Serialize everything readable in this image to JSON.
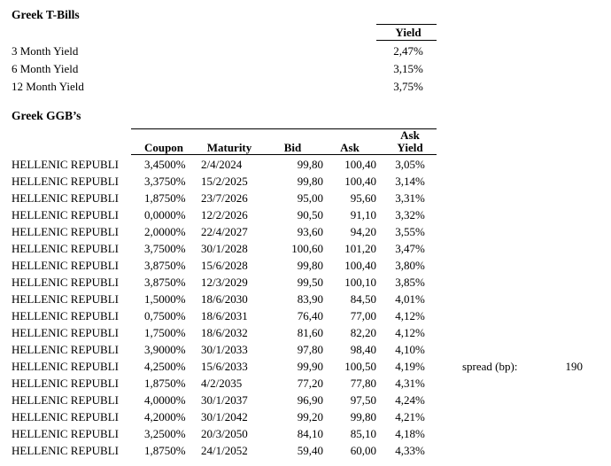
{
  "tbills": {
    "title": "Greek T-Bills",
    "yield_header": "Yield",
    "rows": [
      {
        "label": "3 Month Yield",
        "value": "2,47%"
      },
      {
        "label": "6 Month Yield",
        "value": "3,15%"
      },
      {
        "label": "12 Month Yield",
        "value": "3,75%"
      }
    ]
  },
  "ggbs": {
    "title": "Greek GGB’s",
    "columns": {
      "coupon": "Coupon",
      "maturity": "Maturity",
      "bid": "Bid",
      "ask": "Ask",
      "ask_yield_line1": "Ask",
      "ask_yield_line2": "Yield"
    },
    "rows": [
      {
        "name": "HELLENIC REPUBLI",
        "coupon": "3,4500%",
        "maturity": "2/4/2024",
        "bid": "99,80",
        "ask": "100,40",
        "yield": "3,05%"
      },
      {
        "name": "HELLENIC REPUBLI",
        "coupon": "3,3750%",
        "maturity": "15/2/2025",
        "bid": "99,80",
        "ask": "100,40",
        "yield": "3,14%"
      },
      {
        "name": "HELLENIC REPUBLI",
        "coupon": "1,8750%",
        "maturity": "23/7/2026",
        "bid": "95,00",
        "ask": "95,60",
        "yield": "3,31%"
      },
      {
        "name": "HELLENIC REPUBLI",
        "coupon": "0,0000%",
        "maturity": "12/2/2026",
        "bid": "90,50",
        "ask": "91,10",
        "yield": "3,32%"
      },
      {
        "name": "HELLENIC REPUBLI",
        "coupon": "2,0000%",
        "maturity": "22/4/2027",
        "bid": "93,60",
        "ask": "94,20",
        "yield": "3,55%"
      },
      {
        "name": "HELLENIC REPUBLI",
        "coupon": "3,7500%",
        "maturity": "30/1/2028",
        "bid": "100,60",
        "ask": "101,20",
        "yield": "3,47%"
      },
      {
        "name": "HELLENIC REPUBLI",
        "coupon": "3,8750%",
        "maturity": "15/6/2028",
        "bid": "99,80",
        "ask": "100,40",
        "yield": "3,80%"
      },
      {
        "name": "HELLENIC REPUBLI",
        "coupon": "3,8750%",
        "maturity": "12/3/2029",
        "bid": "99,50",
        "ask": "100,10",
        "yield": "3,85%"
      },
      {
        "name": "HELLENIC REPUBLI",
        "coupon": "1,5000%",
        "maturity": "18/6/2030",
        "bid": "83,90",
        "ask": "84,50",
        "yield": "4,01%"
      },
      {
        "name": "HELLENIC REPUBLI",
        "coupon": "0,7500%",
        "maturity": "18/6/2031",
        "bid": "76,40",
        "ask": "77,00",
        "yield": "4,12%"
      },
      {
        "name": "HELLENIC REPUBLI",
        "coupon": "1,7500%",
        "maturity": "18/6/2032",
        "bid": "81,60",
        "ask": "82,20",
        "yield": "4,12%"
      },
      {
        "name": "HELLENIC REPUBLI",
        "coupon": "3,9000%",
        "maturity": "30/1/2033",
        "bid": "97,80",
        "ask": "98,40",
        "yield": "4,10%"
      },
      {
        "name": "HELLENIC REPUBLI",
        "coupon": "4,2500%",
        "maturity": "15/6/2033",
        "bid": "99,90",
        "ask": "100,50",
        "yield": "4,19%"
      },
      {
        "name": "HELLENIC REPUBLI",
        "coupon": "1,8750%",
        "maturity": "4/2/2035",
        "bid": "77,20",
        "ask": "77,80",
        "yield": "4,31%"
      },
      {
        "name": "HELLENIC REPUBLI",
        "coupon": "4,0000%",
        "maturity": "30/1/2037",
        "bid": "96,90",
        "ask": "97,50",
        "yield": "4,24%"
      },
      {
        "name": "HELLENIC REPUBLI",
        "coupon": "4,2000%",
        "maturity": "30/1/2042",
        "bid": "99,20",
        "ask": "99,80",
        "yield": "4,21%"
      },
      {
        "name": "HELLENIC REPUBLI",
        "coupon": "3,2500%",
        "maturity": "20/3/2050",
        "bid": "84,10",
        "ask": "85,10",
        "yield": "4,18%"
      },
      {
        "name": "HELLENIC REPUBLI",
        "coupon": "1,8750%",
        "maturity": "24/1/2052",
        "bid": "59,40",
        "ask": "60,00",
        "yield": "4,33%"
      }
    ]
  },
  "spread": {
    "label": "spread (bp):",
    "value": "190"
  }
}
